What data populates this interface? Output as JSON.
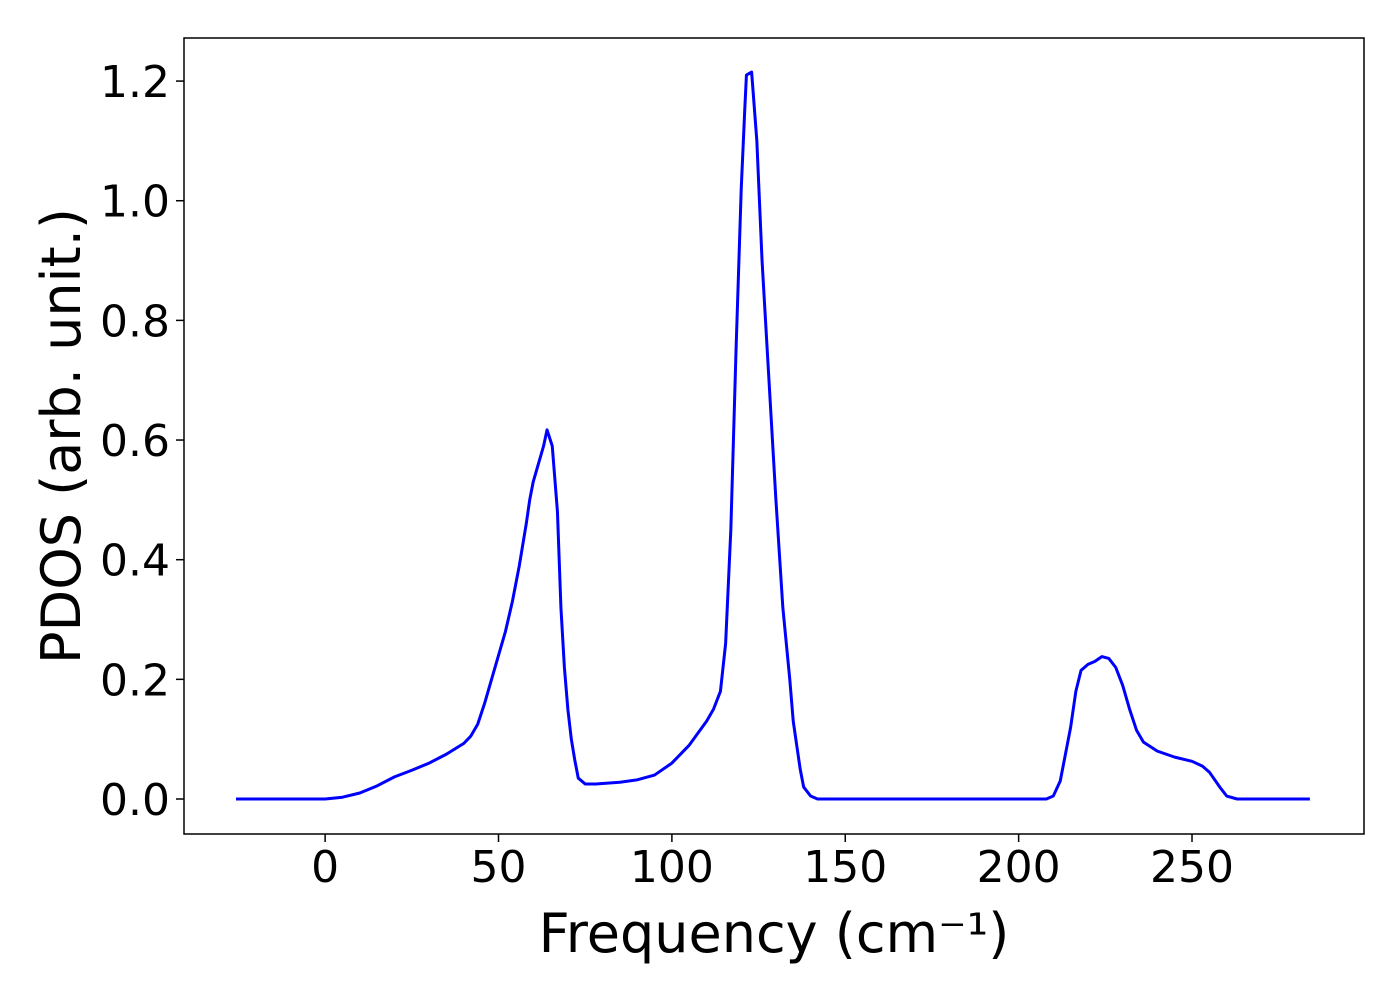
{
  "chart_data": {
    "type": "line",
    "xlabel": "Frequency (cm⁻¹)",
    "ylabel": "PDOS (arb. unit.)",
    "xlim": [
      -40.7,
      299.6
    ],
    "ylim": [
      -0.0585,
      1.272
    ],
    "xticks": [
      0,
      50,
      100,
      150,
      200,
      250
    ],
    "yticks": [
      {
        "value": 0,
        "label": "0.0"
      },
      {
        "value": 0.2,
        "label": "0.2"
      },
      {
        "value": 0.4,
        "label": "0.4"
      },
      {
        "value": 0.6,
        "label": "0.6"
      },
      {
        "value": 0.8,
        "label": "0.8"
      },
      {
        "value": 1.0,
        "label": "1.0"
      },
      {
        "value": 1.2,
        "label": "1.2"
      }
    ],
    "grid": false,
    "series": [
      {
        "color": "#0000ff",
        "x": [
          -25.7,
          0,
          5,
          10,
          15,
          20,
          25,
          30,
          35,
          40,
          42,
          44,
          46,
          48,
          50,
          52,
          54,
          56,
          58,
          59,
          60,
          61,
          63,
          64,
          65.5,
          67,
          68,
          69,
          70,
          71,
          72,
          73,
          75,
          78,
          85,
          90,
          95,
          100,
          105,
          110,
          112,
          114,
          115.5,
          117,
          118.5,
          120,
          121,
          121.5,
          123,
          124.5,
          126,
          128,
          130,
          132,
          134,
          135,
          136,
          137,
          138,
          140,
          142,
          208,
          210,
          212,
          213,
          215,
          216.5,
          218,
          220,
          222,
          224,
          226,
          228,
          230,
          232,
          234,
          236,
          240,
          245,
          250,
          253,
          255,
          258,
          260,
          263,
          284
        ],
        "values": [
          0,
          0,
          0.003,
          0.01,
          0.022,
          0.037,
          0.048,
          0.06,
          0.075,
          0.093,
          0.105,
          0.125,
          0.16,
          0.2,
          0.24,
          0.28,
          0.33,
          0.39,
          0.46,
          0.5,
          0.53,
          0.55,
          0.59,
          0.617,
          0.59,
          0.48,
          0.32,
          0.22,
          0.15,
          0.1,
          0.065,
          0.035,
          0.025,
          0.025,
          0.028,
          0.032,
          0.04,
          0.06,
          0.09,
          0.13,
          0.15,
          0.18,
          0.26,
          0.45,
          0.75,
          1.02,
          1.15,
          1.21,
          1.215,
          1.1,
          0.9,
          0.7,
          0.5,
          0.32,
          0.2,
          0.13,
          0.09,
          0.05,
          0.02,
          0.005,
          0,
          0,
          0.005,
          0.03,
          0.06,
          0.12,
          0.18,
          0.215,
          0.225,
          0.23,
          0.238,
          0.235,
          0.22,
          0.19,
          0.15,
          0.115,
          0.095,
          0.08,
          0.07,
          0.063,
          0.055,
          0.045,
          0.02,
          0.005,
          0,
          0
        ]
      }
    ]
  }
}
